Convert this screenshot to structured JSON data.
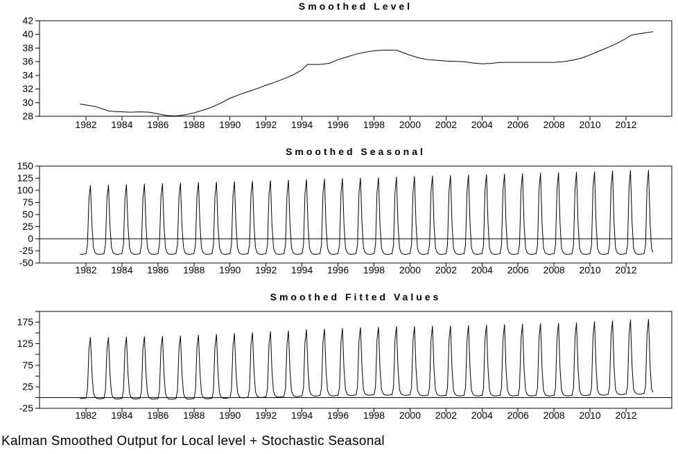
{
  "page": {
    "caption": "Kalman Smoothed Output for Local level + Stochastic Seasonal"
  },
  "chart_data": [
    {
      "type": "line",
      "title": "Smoothed Level",
      "xlabel": "",
      "ylabel": "",
      "xlim": [
        1979.42,
        2014.54
      ],
      "ylim": [
        28,
        42
      ],
      "yticks": [
        28,
        30,
        32,
        34,
        36,
        38,
        40,
        42
      ],
      "xticks": [
        1982,
        1984,
        1986,
        1988,
        1990,
        1992,
        1994,
        1996,
        1998,
        2000,
        2002,
        2004,
        2006,
        2008,
        2010,
        2012
      ],
      "grid": "off",
      "points": [
        [
          1981.67,
          29.8
        ],
        [
          1982.0,
          29.65
        ],
        [
          1982.5,
          29.45
        ],
        [
          1983.0,
          29.0
        ],
        [
          1983.3,
          28.75
        ],
        [
          1984.0,
          28.65
        ],
        [
          1984.5,
          28.6
        ],
        [
          1985.0,
          28.65
        ],
        [
          1985.5,
          28.6
        ],
        [
          1986.0,
          28.35
        ],
        [
          1986.5,
          28.1
        ],
        [
          1987.0,
          28.05
        ],
        [
          1987.5,
          28.2
        ],
        [
          1988.0,
          28.5
        ],
        [
          1988.5,
          28.9
        ],
        [
          1989.0,
          29.35
        ],
        [
          1989.5,
          29.95
        ],
        [
          1990.0,
          30.65
        ],
        [
          1990.5,
          31.15
        ],
        [
          1991.0,
          31.6
        ],
        [
          1991.5,
          32.05
        ],
        [
          1992.0,
          32.55
        ],
        [
          1992.5,
          33.0
        ],
        [
          1993.0,
          33.5
        ],
        [
          1993.5,
          34.05
        ],
        [
          1994.0,
          34.8
        ],
        [
          1994.3,
          35.6
        ],
        [
          1995.0,
          35.6
        ],
        [
          1995.5,
          35.75
        ],
        [
          1996.0,
          36.3
        ],
        [
          1996.5,
          36.7
        ],
        [
          1997.0,
          37.1
        ],
        [
          1997.5,
          37.4
        ],
        [
          1998.0,
          37.6
        ],
        [
          1998.5,
          37.7
        ],
        [
          1999.0,
          37.7
        ],
        [
          1999.3,
          37.65
        ],
        [
          2000.0,
          36.95
        ],
        [
          2000.5,
          36.55
        ],
        [
          2001.0,
          36.3
        ],
        [
          2001.5,
          36.2
        ],
        [
          2002.0,
          36.1
        ],
        [
          2002.5,
          36.05
        ],
        [
          2003.0,
          36.0
        ],
        [
          2003.5,
          35.8
        ],
        [
          2004.0,
          35.7
        ],
        [
          2004.5,
          35.75
        ],
        [
          2005.0,
          35.9
        ],
        [
          2006.0,
          35.9
        ],
        [
          2007.0,
          35.9
        ],
        [
          2008.0,
          35.9
        ],
        [
          2008.5,
          36.0
        ],
        [
          2009.0,
          36.2
        ],
        [
          2009.5,
          36.5
        ],
        [
          2010.0,
          37.0
        ],
        [
          2010.5,
          37.55
        ],
        [
          2011.0,
          38.1
        ],
        [
          2011.5,
          38.7
        ],
        [
          2012.0,
          39.4
        ],
        [
          2012.3,
          39.9
        ],
        [
          2012.6,
          40.05
        ],
        [
          2013.0,
          40.2
        ],
        [
          2013.5,
          40.4
        ]
      ]
    },
    {
      "type": "line",
      "title": "Smoothed Seasonal",
      "xlabel": "",
      "ylabel": "",
      "xlim": [
        1979.42,
        2014.54
      ],
      "ylim": [
        -50,
        150
      ],
      "yticks": [
        -50,
        -25,
        0,
        25,
        50,
        75,
        100,
        125,
        150
      ],
      "xticks": [
        1982,
        1984,
        1986,
        1988,
        1990,
        1992,
        1994,
        1996,
        1998,
        2000,
        2002,
        2004,
        2006,
        2008,
        2010,
        2012
      ],
      "grid": "off",
      "zero_line": 0,
      "gen": {
        "comment": "monthly seasonal factors Jan-Dec; peak months grow linearly 1982->2013 (peak 110->142), troughs constant near -32",
        "start": 1981.6667,
        "end": 2013.5,
        "base": [
          -31,
          -12,
          83,
          110,
          26,
          -18,
          -28,
          -31,
          -32,
          -32,
          -32,
          -31
        ],
        "extra": [
          0,
          -2,
          24,
          32,
          8,
          -2,
          0,
          0,
          0,
          0,
          0,
          0
        ],
        "ramp_from": 1982,
        "ramp_len": 31,
        "add_level": false
      }
    },
    {
      "type": "line",
      "title": "Smoothed Fitted Values",
      "xlabel": "",
      "ylabel": "",
      "xlim": [
        1979.42,
        2014.54
      ],
      "ylim": [
        -25,
        200
      ],
      "yticks": [
        -25,
        0,
        25,
        50,
        75,
        100,
        125,
        150,
        175,
        200
      ],
      "ylabels": [
        -25,
        25,
        75,
        125,
        175
      ],
      "xticks": [
        1982,
        1984,
        1986,
        1988,
        1990,
        1992,
        1994,
        1996,
        1998,
        2000,
        2002,
        2004,
        2006,
        2008,
        2010,
        2012
      ],
      "grid": "off",
      "zero_line": 0,
      "gen": {
        "comment": "fitted = smoothed level + smoothed seasonal; peaks ~139 (1982) to ~182 (2013), troughs near 0",
        "start": 1981.6667,
        "end": 2013.5,
        "base": [
          -31,
          -12,
          83,
          110,
          26,
          -18,
          -28,
          -31,
          -32,
          -32,
          -32,
          -31
        ],
        "extra": [
          0,
          -2,
          24,
          32,
          8,
          -2,
          0,
          0,
          0,
          0,
          0,
          0
        ],
        "ramp_from": 1982,
        "ramp_len": 31,
        "add_level": true
      }
    }
  ]
}
